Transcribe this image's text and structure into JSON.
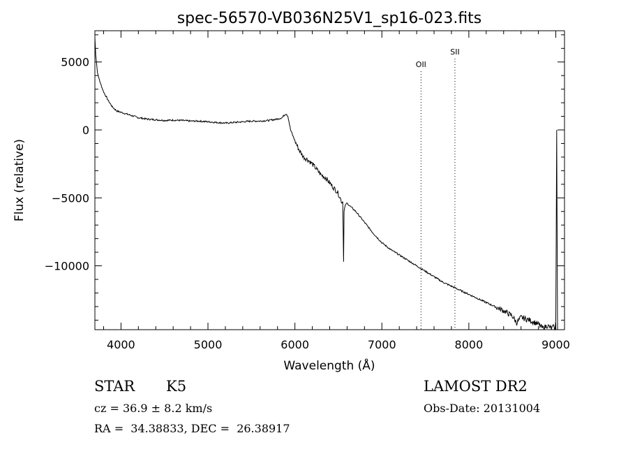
{
  "chart_data": {
    "type": "line",
    "title": "spec-56570-VB036N25V1_sp16-023.fits",
    "xlabel": "Wavelength (Å)",
    "ylabel": "Flux (relative)",
    "xlim": [
      3700,
      9100
    ],
    "ylim": [
      -14700,
      7300
    ],
    "xticks": [
      4000,
      5000,
      6000,
      7000,
      8000,
      9000
    ],
    "yticks": [
      5000,
      0,
      -5000,
      -10000
    ],
    "grid": false,
    "legend": "none",
    "series": [
      {
        "x": [
          3700,
          3710,
          3730,
          3760,
          3800,
          3850,
          3900,
          3950,
          4000,
          4050,
          4100,
          4200,
          4300,
          4400,
          4500,
          4600,
          4700,
          4800,
          4900,
          5000,
          5100,
          5200,
          5300,
          5400,
          5500,
          5600,
          5700,
          5800,
          5850,
          5880,
          5900,
          5920,
          5950,
          6000,
          6050,
          6100,
          6150,
          6200,
          6250,
          6300,
          6350,
          6400,
          6450,
          6480,
          6500,
          6520,
          6540,
          6550,
          6560,
          6565,
          6570,
          6580,
          6600,
          6650,
          6700,
          6800,
          6900,
          7000,
          7100,
          7200,
          7300,
          7400,
          7500,
          7600,
          7700,
          7800,
          7900,
          8000,
          8100,
          8200,
          8300,
          8400,
          8500,
          8550,
          8600,
          8700,
          8800,
          8850,
          8900,
          8950,
          8970,
          8990,
          9000,
          9005,
          9010,
          9020
        ],
        "y": [
          6800,
          5500,
          4200,
          3500,
          2800,
          2200,
          1700,
          1400,
          1300,
          1200,
          1100,
          900,
          800,
          750,
          700,
          720,
          700,
          650,
          650,
          600,
          550,
          500,
          550,
          600,
          650,
          650,
          700,
          800,
          900,
          1100,
          1200,
          1000,
          0,
          -800,
          -1500,
          -2000,
          -2200,
          -2500,
          -2900,
          -3300,
          -3500,
          -3900,
          -4300,
          -4500,
          -4700,
          -5000,
          -5300,
          -5300,
          -9700,
          -6000,
          -5800,
          -5500,
          -5400,
          -5700,
          -6000,
          -6800,
          -7600,
          -8300,
          -8800,
          -9200,
          -9600,
          -10000,
          -10400,
          -10800,
          -11200,
          -11500,
          -11800,
          -12100,
          -12400,
          -12700,
          -13000,
          -13300,
          -13700,
          -14200,
          -13800,
          -14000,
          -14300,
          -14600,
          -14400,
          -14600,
          -14500,
          -14700,
          -14000,
          -7000,
          0,
          -14700
        ]
      }
    ],
    "lines": [
      {
        "label": "OII",
        "x": 7450
      },
      {
        "label": "SII",
        "x": 7840
      }
    ]
  },
  "info": {
    "class": "STAR",
    "subclass": "K5",
    "survey": "LAMOST DR2",
    "cz": "cz = 36.9 ± 8.2 km/s",
    "obs_date": "Obs-Date: 20131004",
    "radec": "RA =  34.38833, DEC =  26.38917"
  }
}
